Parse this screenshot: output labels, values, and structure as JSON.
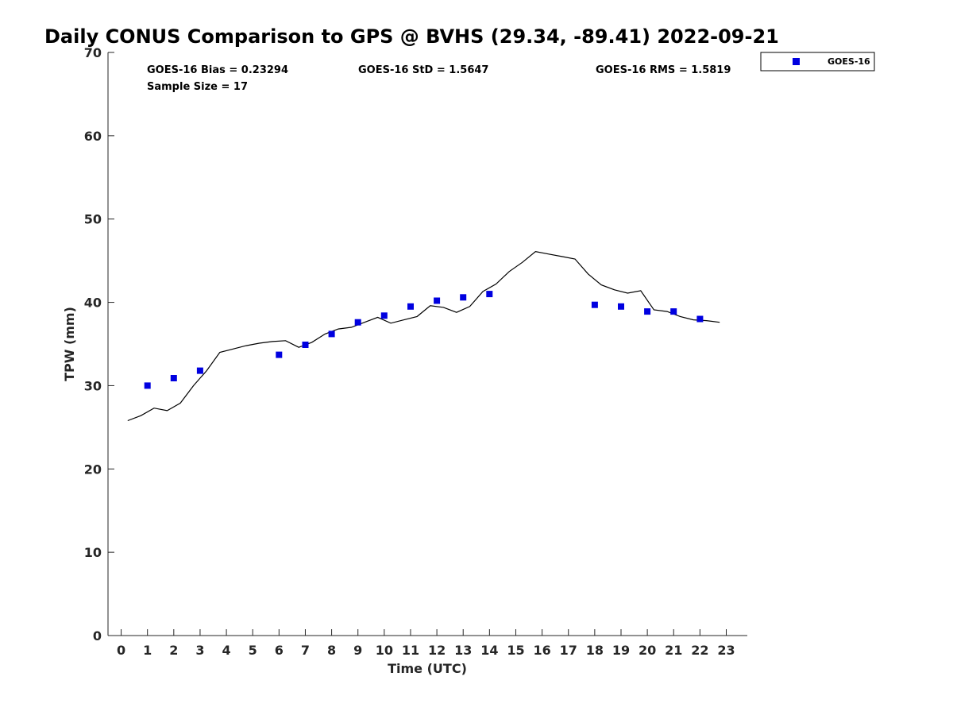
{
  "chart_data": {
    "type": "scatter",
    "title": "Daily CONUS Comparison to GPS @ BVHS (29.34, -89.41) 2022-09-21",
    "xlabel": "Time (UTC)",
    "ylabel": "TPW (mm)",
    "xlim": [
      -0.5,
      23.8
    ],
    "ylim": [
      0,
      70
    ],
    "x_ticks": [
      0,
      1,
      2,
      3,
      4,
      5,
      6,
      7,
      8,
      9,
      10,
      11,
      12,
      13,
      14,
      15,
      16,
      17,
      18,
      19,
      20,
      21,
      22,
      23
    ],
    "y_ticks": [
      0,
      10,
      20,
      30,
      40,
      50,
      60,
      70
    ],
    "grid": false,
    "legend_position": "outside-top-right",
    "stats": {
      "bias": "GOES-16 Bias = 0.23294",
      "std": "GOES-16 StD = 1.5647",
      "rms": "GOES-16 RMS = 1.5819",
      "sample": "Sample Size = 17"
    },
    "series": [
      {
        "name": "GOES-16",
        "kind": "scatter",
        "marker": "square",
        "color": "#0000e0",
        "x": [
          1,
          2,
          3,
          6,
          7,
          8,
          9,
          10,
          11,
          12,
          13,
          14,
          18,
          19,
          20,
          21,
          22
        ],
        "y": [
          30.0,
          30.9,
          31.8,
          33.7,
          34.9,
          36.2,
          37.6,
          38.4,
          39.5,
          40.2,
          40.6,
          41.0,
          39.7,
          39.5,
          38.9,
          38.9,
          38.0
        ]
      },
      {
        "kind": "line",
        "color": "#000000",
        "x": [
          0.25,
          0.75,
          1.25,
          1.75,
          2.25,
          2.75,
          3.25,
          3.75,
          4.25,
          4.75,
          5.25,
          5.75,
          6.25,
          6.75,
          7.25,
          7.75,
          8.25,
          8.75,
          9.25,
          9.75,
          10.25,
          10.75,
          11.25,
          11.75,
          12.25,
          12.75,
          13.25,
          13.75,
          14.25,
          14.75,
          15.25,
          15.75,
          16.25,
          16.75,
          17.25,
          17.75,
          18.25,
          18.75,
          19.25,
          19.75,
          20.25,
          20.75,
          21.25,
          21.75,
          22.25,
          22.75
        ],
        "y": [
          25.8,
          26.4,
          27.3,
          27.0,
          27.9,
          30.0,
          31.8,
          34.0,
          34.4,
          34.8,
          35.1,
          35.3,
          35.4,
          34.6,
          35.2,
          36.2,
          36.8,
          37.0,
          37.6,
          38.2,
          37.5,
          37.9,
          38.3,
          39.6,
          39.4,
          38.8,
          39.5,
          41.3,
          42.2,
          43.7,
          44.8,
          46.1,
          45.8,
          45.5,
          45.2,
          43.4,
          42.1,
          41.5,
          41.1,
          41.4,
          39.1,
          38.9,
          38.3,
          37.9,
          37.8,
          37.6
        ]
      }
    ]
  }
}
